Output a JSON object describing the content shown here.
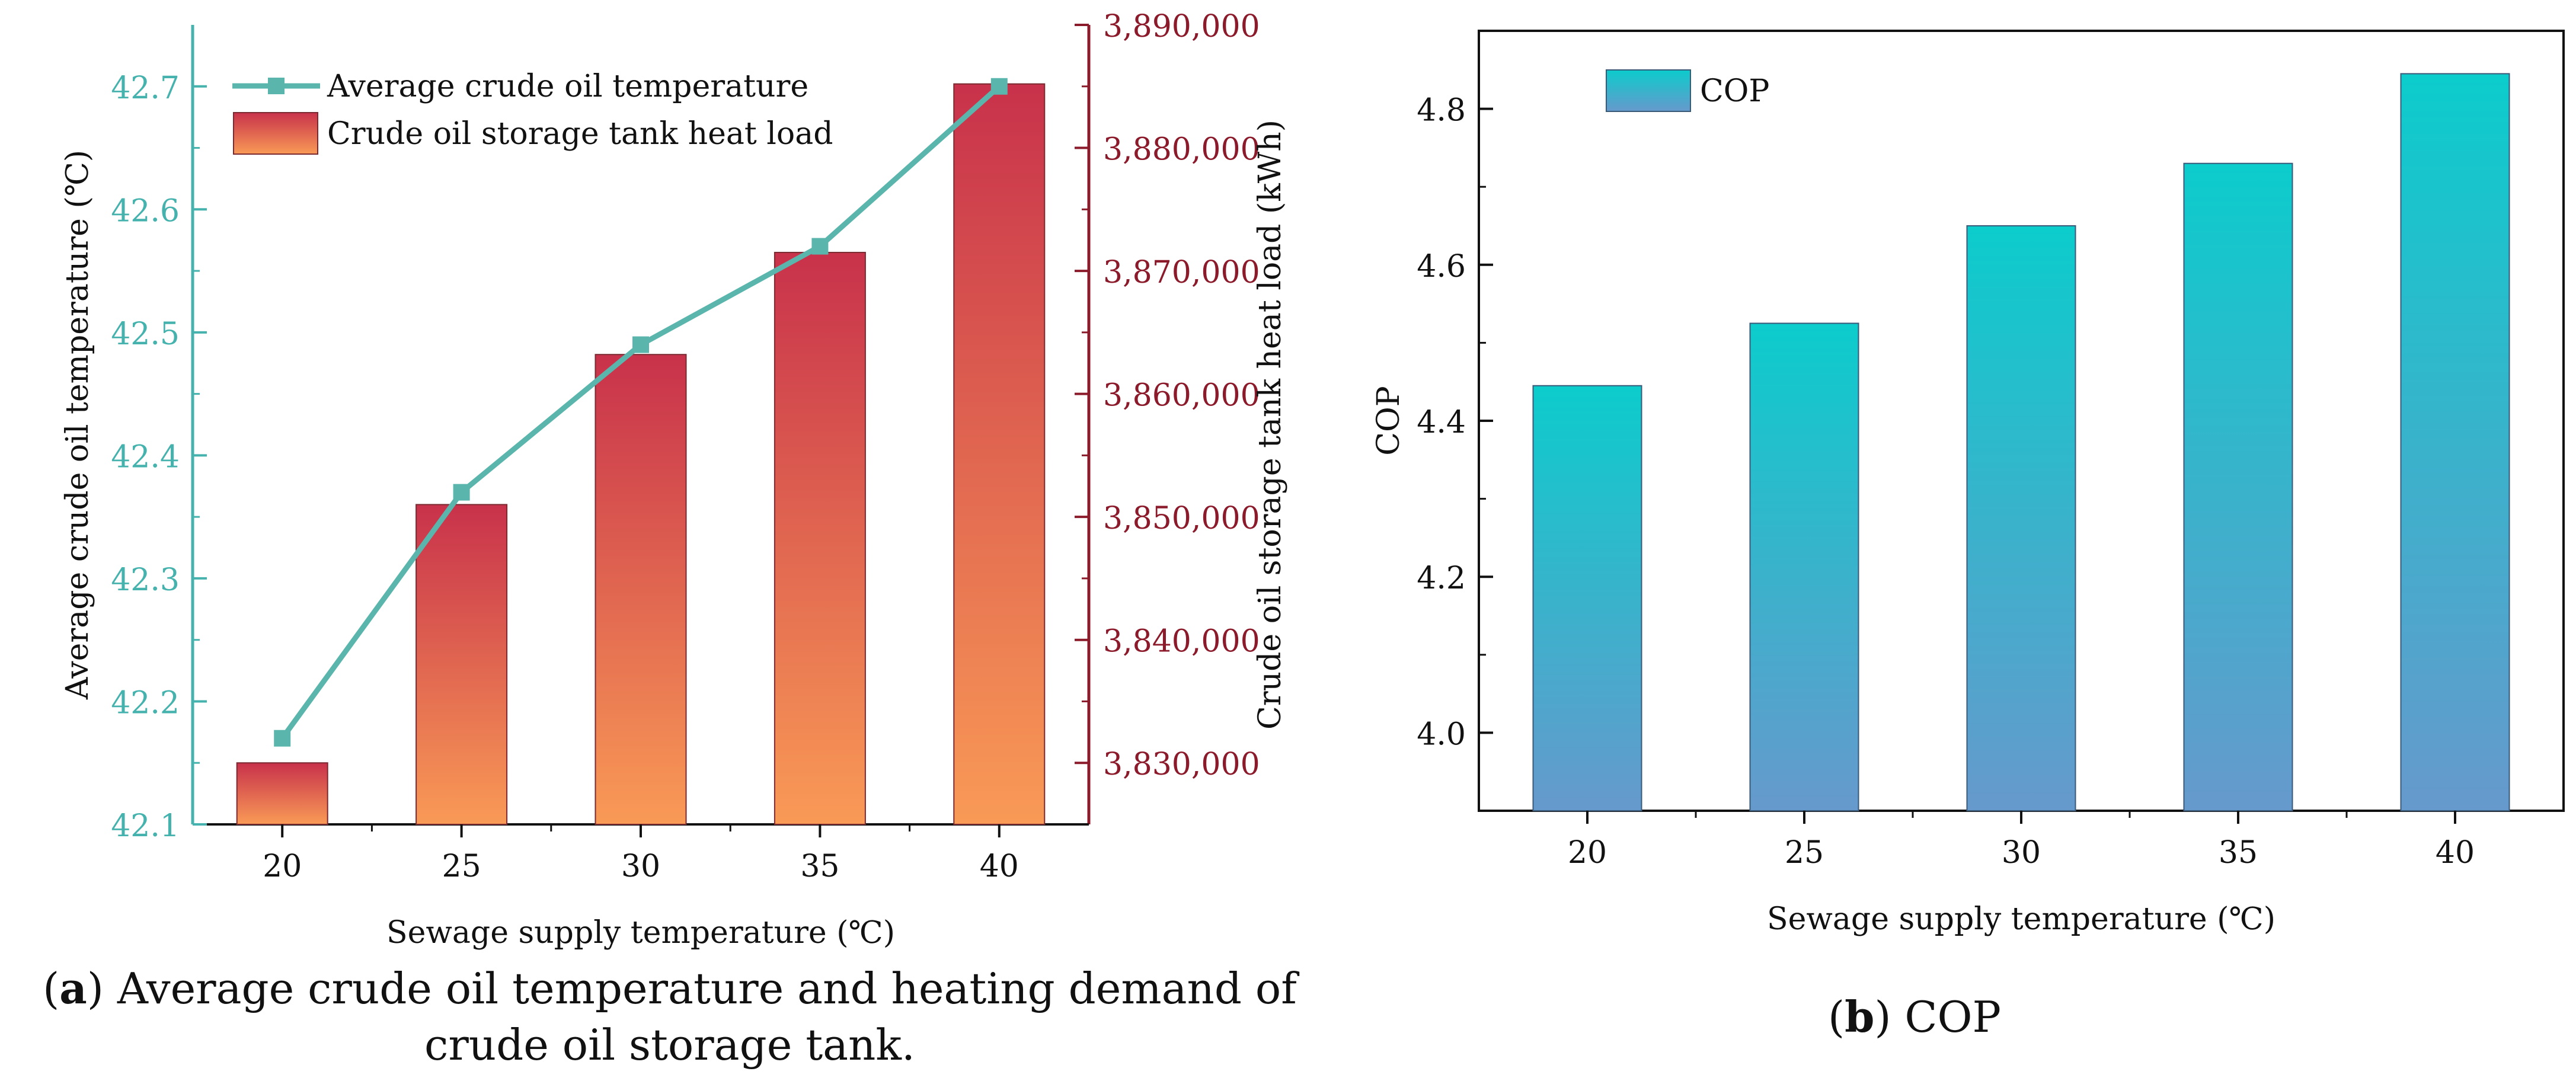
{
  "figure": {
    "caption_a_label": "a",
    "caption_a_text": "Average crude oil temperature and heating demand of crude oil storage tank.",
    "caption_b_label": "b",
    "caption_b_text": "COP"
  },
  "chart_data": [
    {
      "type": "bar+line",
      "panel": "a",
      "categories": [
        "20",
        "25",
        "30",
        "35",
        "40"
      ],
      "xlabel": "Sewage supply temperature (℃)",
      "series": [
        {
          "name": "Average crude oil temperature",
          "kind": "line",
          "axis": "left",
          "values": [
            42.17,
            42.37,
            42.49,
            42.57,
            42.7
          ],
          "color": "#5ab5ad"
        },
        {
          "name": "Crude oil storage tank heat load",
          "kind": "bar",
          "axis": "right",
          "values": [
            3830000,
            3851000,
            3863200,
            3871500,
            3885200
          ],
          "color_top": "#c8324b",
          "color_bottom": "#f99a56"
        }
      ],
      "y_left": {
        "label": "Average crude oil temperature (℃)",
        "min": 42.1,
        "max": 42.75,
        "ticks": [
          42.1,
          42.2,
          42.3,
          42.4,
          42.5,
          42.6,
          42.7
        ],
        "tick_labels": [
          "42.1",
          "42.2",
          "42.3",
          "42.4",
          "42.5",
          "42.6",
          "42.7"
        ],
        "color": "#45b2ad"
      },
      "y_right": {
        "label": "Crude oil storage tank heat load (kWh)",
        "min": 3825000,
        "max": 3890000,
        "ticks": [
          3830000,
          3840000,
          3850000,
          3860000,
          3870000,
          3880000,
          3890000
        ],
        "tick_labels": [
          "3,830,000",
          "3,840,000",
          "3,850,000",
          "3,860,000",
          "3,870,000",
          "3,880,000",
          "3,890,000"
        ],
        "color": "#8b1a2b"
      },
      "legend": "top-left"
    },
    {
      "type": "bar",
      "panel": "b",
      "categories": [
        "20",
        "25",
        "30",
        "35",
        "40"
      ],
      "series": [
        {
          "name": "COP",
          "values": [
            4.445,
            4.525,
            4.65,
            4.73,
            4.845
          ],
          "color_top": "#0ccccc",
          "color_bottom": "#6699cc"
        }
      ],
      "xlabel": "Sewage supply temperature (℃)",
      "ylabel": "COP",
      "ylim": [
        3.9,
        4.9
      ],
      "ticks": [
        4.0,
        4.2,
        4.4,
        4.6,
        4.8
      ],
      "tick_labels": [
        "4.0",
        "4.2",
        "4.4",
        "4.6",
        "4.8"
      ],
      "legend": "top-left"
    }
  ]
}
